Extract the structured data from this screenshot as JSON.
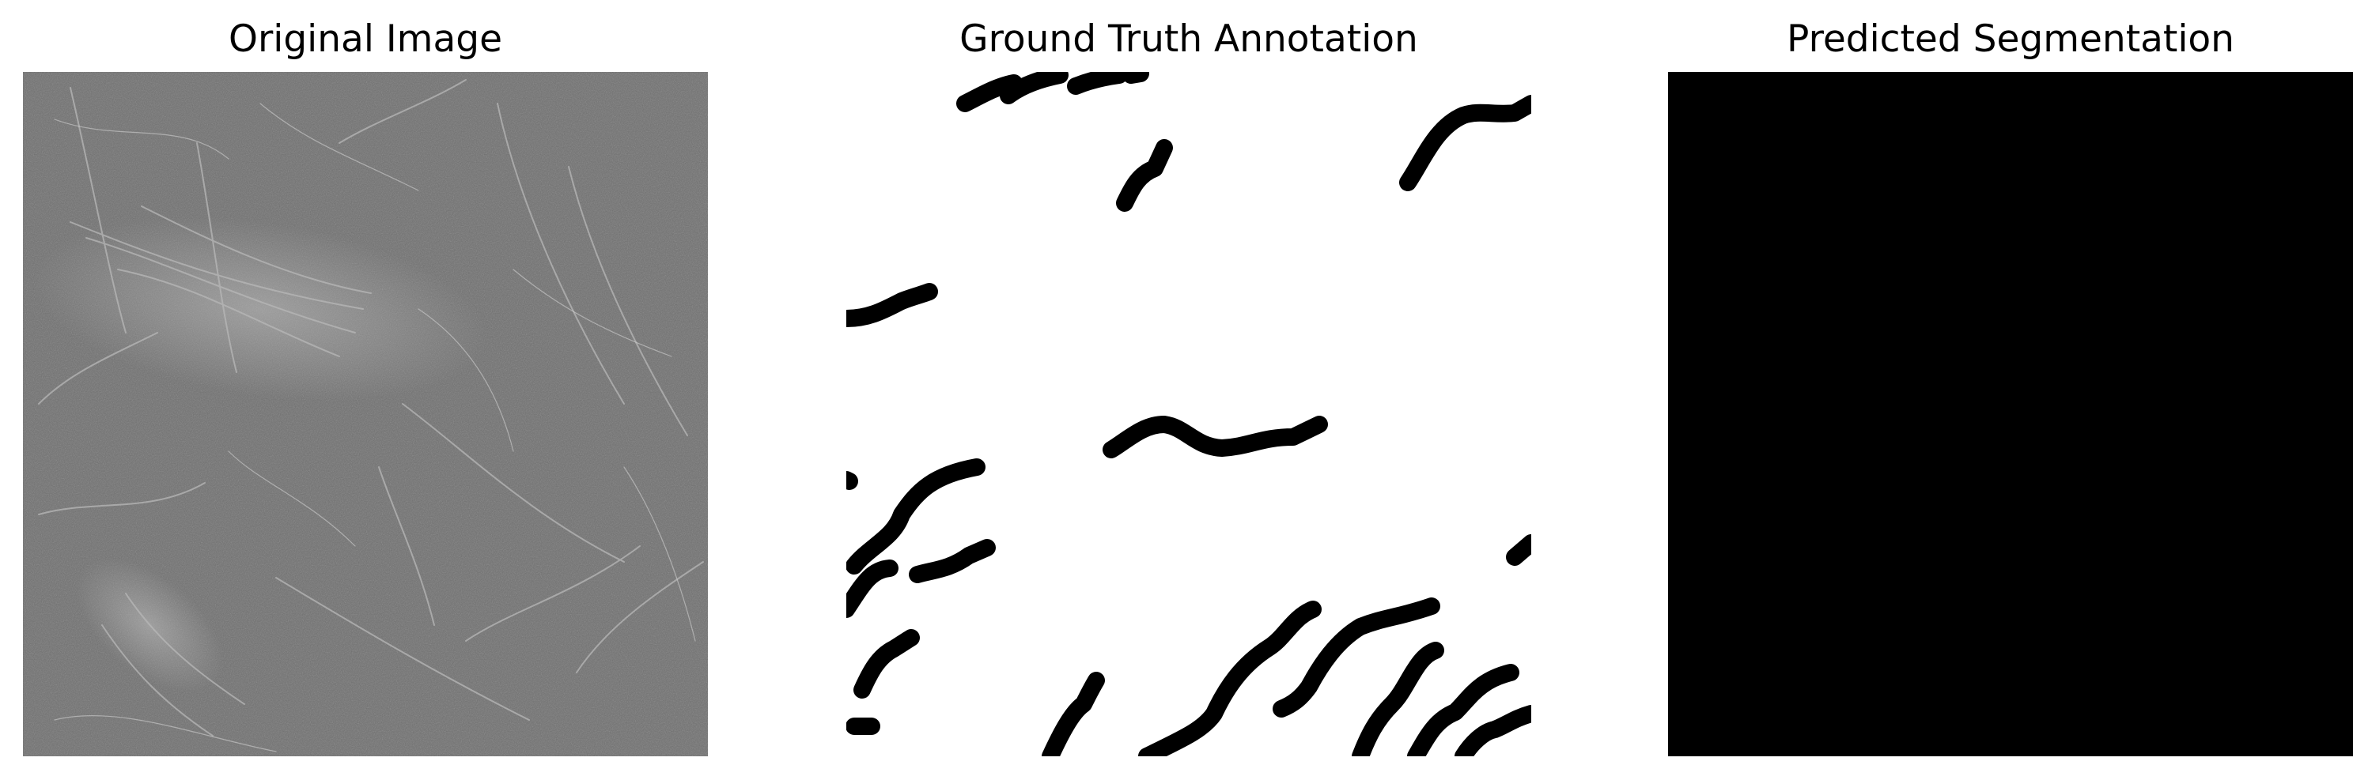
{
  "panels": [
    {
      "title": "Original Image",
      "image": "grayscale-fiber-micrograph"
    },
    {
      "title": "Ground Truth Annotation",
      "image": "binary-fiber-mask"
    },
    {
      "title": "Predicted Segmentation",
      "image": "all-black-mask"
    }
  ],
  "colors": {
    "background": "#ffffff",
    "mask_fg": "#000000",
    "mask_bg": "#ffffff",
    "tissue": "#6f6f6f"
  }
}
